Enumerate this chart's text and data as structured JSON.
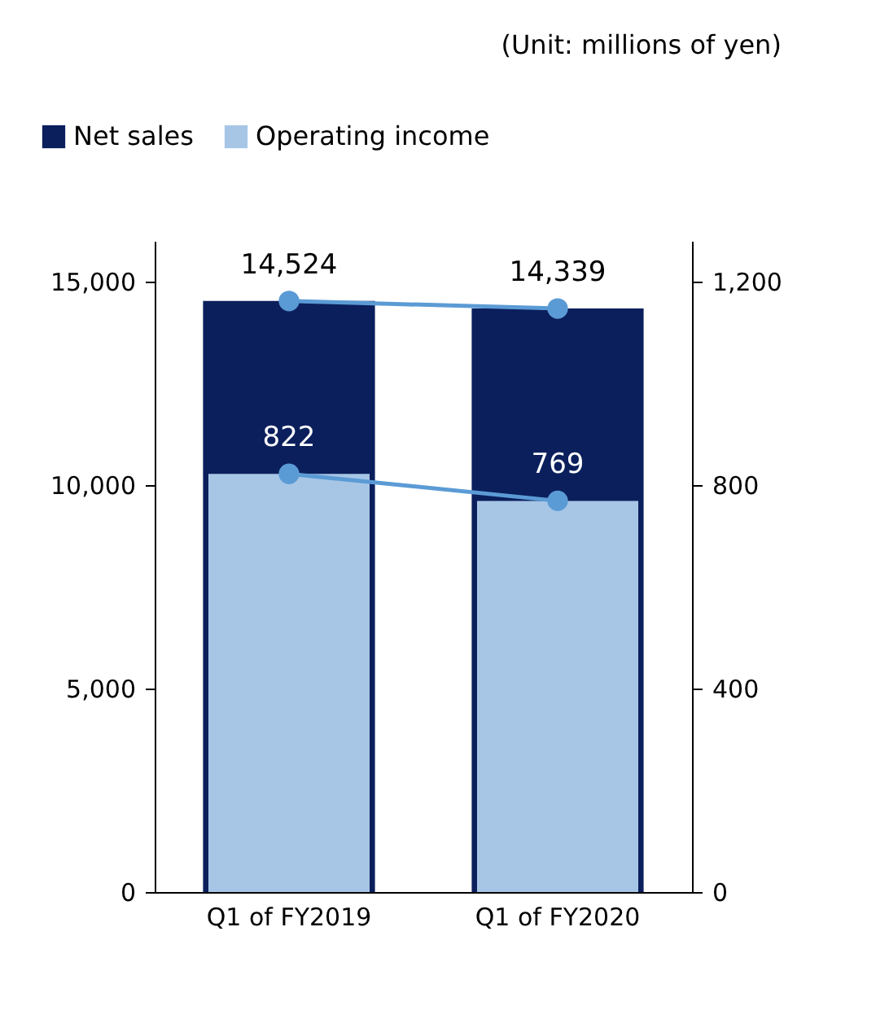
{
  "chart_data": {
    "type": "bar",
    "categories": [
      "Q1 of FY2019",
      "Q1 of FY2020"
    ],
    "series": [
      {
        "name": "Net sales",
        "color": "#0b1f5c",
        "values": [
          14524,
          14339
        ],
        "value_labels": [
          "14,524",
          "14,339"
        ]
      },
      {
        "name": "Operating income",
        "color": "#a7c6e6",
        "values": [
          822,
          769
        ],
        "axis": "y2",
        "value_labels": [
          "822",
          "769"
        ]
      },
      {
        "type": "line",
        "color": "#5b9bd5",
        "values": [
          14524,
          14339
        ]
      },
      {
        "type": "line",
        "color": "#5b9bd5",
        "values": [
          822,
          769
        ],
        "axis": "y2"
      }
    ],
    "ylim": [
      0,
      16000
    ],
    "yticks": [
      0,
      {
        "value": 5000,
        "label": "5,000"
      },
      {
        "value": 10000,
        "label": "10,000"
      },
      {
        "value": 15000,
        "label": "15,000"
      }
    ],
    "y2lim": [
      0,
      1280
    ],
    "y2ticks": [
      0,
      400,
      800,
      {
        "value": 1200,
        "label": "1,200"
      }
    ],
    "marker": "circle",
    "legend": "top left",
    "grid": false,
    "annotations": [
      "(Unit: millions of yen)"
    ]
  }
}
